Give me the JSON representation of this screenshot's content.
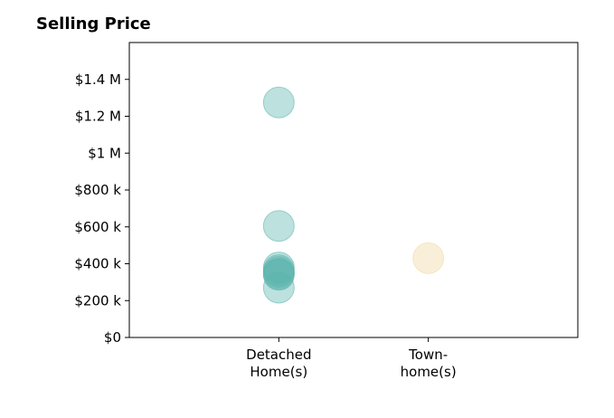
{
  "chart_data": {
    "type": "scatter",
    "title": "Selling Price",
    "xlabel": "",
    "ylabel": "",
    "categories": [
      [
        "Detached",
        "Home(s)"
      ],
      [
        "Town-",
        "home(s)"
      ]
    ],
    "xlim": [
      -1,
      2
    ],
    "ylim": [
      0,
      1600000
    ],
    "yticks": [
      {
        "value": 0,
        "label": "$0"
      },
      {
        "value": 200000,
        "label": "$200 k"
      },
      {
        "value": 400000,
        "label": "$400 k"
      },
      {
        "value": 600000,
        "label": "$600 k"
      },
      {
        "value": 800000,
        "label": "$800 k"
      },
      {
        "value": 1000000,
        "label": "$1 M"
      },
      {
        "value": 1200000,
        "label": "$1.2 M"
      },
      {
        "value": 1400000,
        "label": "$1.4 M"
      }
    ],
    "grid": false,
    "series": [
      {
        "category": 0,
        "color": "#5ab4ac",
        "values": [
          1275000,
          605000,
          380000,
          365000,
          355000,
          345000,
          340000,
          270000
        ]
      },
      {
        "category": 1,
        "color": "#f0d8a0",
        "values": [
          430000
        ]
      }
    ]
  }
}
